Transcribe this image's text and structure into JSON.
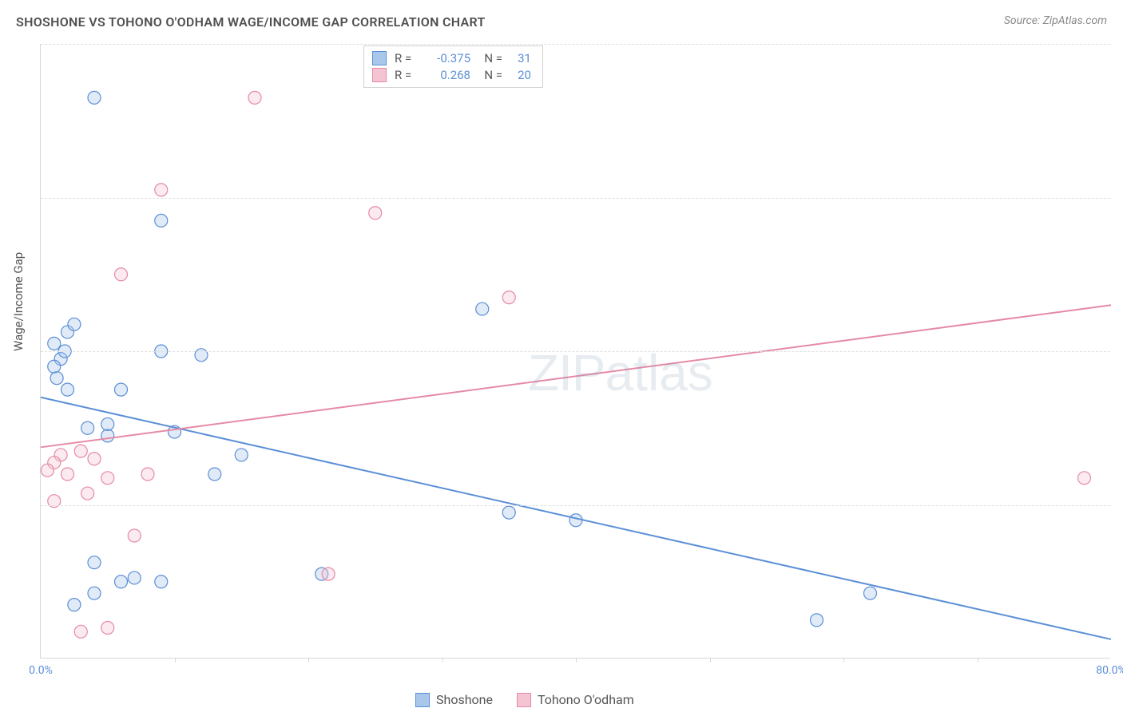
{
  "header": {
    "title": "SHOSHONE VS TOHONO O'ODHAM WAGE/INCOME GAP CORRELATION CHART",
    "source": "Source: ZipAtlas.com"
  },
  "watermark": {
    "zip": "ZIP",
    "atlas": "atlas"
  },
  "chart": {
    "type": "scatter",
    "ylabel": "Wage/Income Gap",
    "xlim": [
      0,
      80
    ],
    "ylim": [
      0,
      80
    ],
    "ytick_step": 20,
    "xtick_major": [
      0,
      80
    ],
    "xtick_minor": [
      10,
      20,
      30,
      40,
      50,
      60,
      70
    ],
    "tick_format_suffix": "%",
    "background_color": "#ffffff",
    "grid_color": "#e0e0e0",
    "axis_color": "#d8d8d8",
    "tick_label_color": "#5b8fd6",
    "label_fontsize": 15,
    "tick_fontsize": 14,
    "marker_radius": 8,
    "marker_stroke_width": 1.2,
    "marker_fill_opacity": 0.35,
    "trendline_width": 2,
    "series": [
      {
        "name": "Shoshone",
        "color_stroke": "#5b8fd6",
        "color_fill": "#a9c7eb",
        "R": -0.375,
        "N": 31,
        "trend": {
          "y_at_x0": 34.0,
          "y_at_x80": 2.5
        },
        "points": [
          [
            4,
            73
          ],
          [
            1,
            41
          ],
          [
            1.5,
            39
          ],
          [
            2,
            42.5
          ],
          [
            2.5,
            43.5
          ],
          [
            1,
            38
          ],
          [
            2,
            35
          ],
          [
            9,
            57
          ],
          [
            5,
            29
          ],
          [
            5,
            30.5
          ],
          [
            10,
            29.5
          ],
          [
            12,
            39.5
          ],
          [
            9,
            40
          ],
          [
            6,
            35
          ],
          [
            1.2,
            36.5
          ],
          [
            13,
            24
          ],
          [
            15,
            26.5
          ],
          [
            4,
            12.5
          ],
          [
            6,
            10
          ],
          [
            7,
            10.5
          ],
          [
            9,
            10
          ],
          [
            2.5,
            7
          ],
          [
            4,
            8.5
          ],
          [
            35,
            19
          ],
          [
            40,
            18
          ],
          [
            21,
            11
          ],
          [
            33,
            45.5
          ],
          [
            62,
            8.5
          ],
          [
            58,
            5
          ],
          [
            3.5,
            30
          ],
          [
            1.8,
            40
          ]
        ]
      },
      {
        "name": "Tohono O'odham",
        "color_stroke": "#e68aa5",
        "color_fill": "#f4c4d2",
        "R": 0.268,
        "N": 20,
        "trend": {
          "y_at_x0": 27.5,
          "y_at_x80": 46.0
        },
        "points": [
          [
            16,
            73
          ],
          [
            9,
            61
          ],
          [
            6,
            50
          ],
          [
            35,
            47
          ],
          [
            25,
            58
          ],
          [
            1.5,
            26.5
          ],
          [
            1,
            25.5
          ],
          [
            0.5,
            24.5
          ],
          [
            3,
            27
          ],
          [
            2,
            24
          ],
          [
            4,
            26
          ],
          [
            5,
            23.5
          ],
          [
            8,
            24
          ],
          [
            1,
            20.5
          ],
          [
            7,
            16
          ],
          [
            3,
            3.5
          ],
          [
            5,
            4
          ],
          [
            3.5,
            21.5
          ],
          [
            21.5,
            11
          ],
          [
            78,
            23.5
          ]
        ]
      }
    ]
  },
  "legend_top": {
    "labelR": "R =",
    "labelN": "N ="
  },
  "legend_bottom": {}
}
